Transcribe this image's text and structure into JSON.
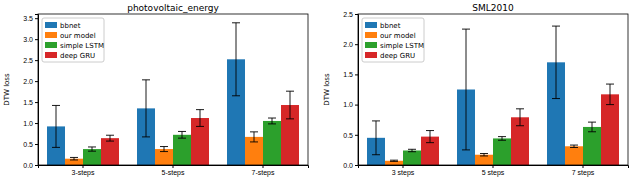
{
  "chart_data": [
    {
      "type": "bar",
      "title": "photovoltaic_energy",
      "y_label": "DTW loss",
      "categories": [
        "3-steps",
        "5-steps",
        "7-steps"
      ],
      "series": [
        {
          "name": "bbnet",
          "color": "#1f77b4",
          "values": [
            0.92,
            1.35,
            2.52
          ],
          "errors": [
            0.5,
            0.68,
            0.87
          ]
        },
        {
          "name": "our model",
          "color": "#ff7f0e",
          "values": [
            0.15,
            0.38,
            0.67
          ],
          "errors": [
            0.03,
            0.06,
            0.12
          ]
        },
        {
          "name": "simple LSTM",
          "color": "#2ca02c",
          "values": [
            0.38,
            0.72,
            1.05
          ],
          "errors": [
            0.05,
            0.08,
            0.07
          ]
        },
        {
          "name": "deep GRU",
          "color": "#d62728",
          "values": [
            0.64,
            1.12,
            1.43
          ],
          "errors": [
            0.07,
            0.2,
            0.33
          ]
        }
      ],
      "ylim": [
        0,
        3.6
      ],
      "yticks": [
        {
          "value": 0,
          "label": "0.0"
        },
        0.5,
        {
          "value": 1,
          "label": "1.0"
        },
        1.5,
        {
          "value": 2,
          "label": "2.0"
        },
        2.5,
        {
          "value": 3,
          "label": "3.0"
        },
        3.5
      ],
      "legend": "upper left"
    },
    {
      "type": "bar",
      "title": "SML2010",
      "y_label": "DTW loss",
      "categories": [
        "3 steps",
        "5 steps",
        "7 steps"
      ],
      "series": [
        {
          "name": "bbnet",
          "color": "#1f77b4",
          "values": [
            0.45,
            1.25,
            1.7
          ],
          "errors": [
            0.28,
            1.0,
            0.6
          ]
        },
        {
          "name": "our model",
          "color": "#ff7f0e",
          "values": [
            0.07,
            0.17,
            0.31
          ],
          "errors": [
            0.01,
            0.02,
            0.02
          ]
        },
        {
          "name": "simple LSTM",
          "color": "#2ca02c",
          "values": [
            0.24,
            0.44,
            0.63
          ],
          "errors": [
            0.02,
            0.03,
            0.08
          ]
        },
        {
          "name": "deep GRU",
          "color": "#d62728",
          "values": [
            0.47,
            0.79,
            1.17
          ],
          "errors": [
            0.1,
            0.14,
            0.17
          ]
        }
      ],
      "ylim": [
        0,
        2.5
      ],
      "yticks": [
        {
          "value": 0,
          "label": "0.0"
        },
        0.5,
        {
          "value": 1,
          "label": "1.0"
        },
        1.5,
        {
          "value": 2,
          "label": "2.0"
        },
        2.5
      ],
      "legend": "upper left"
    }
  ]
}
